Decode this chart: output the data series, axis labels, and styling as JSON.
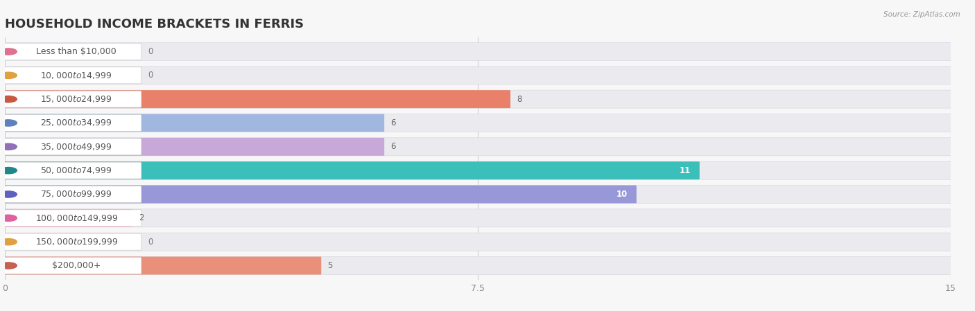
{
  "title": "HOUSEHOLD INCOME BRACKETS IN FERRIS",
  "source": "Source: ZipAtlas.com",
  "categories": [
    "Less than $10,000",
    "$10,000 to $14,999",
    "$15,000 to $24,999",
    "$25,000 to $34,999",
    "$35,000 to $49,999",
    "$50,000 to $74,999",
    "$75,000 to $99,999",
    "$100,000 to $149,999",
    "$150,000 to $199,999",
    "$200,000+"
  ],
  "values": [
    0,
    0,
    8,
    6,
    6,
    11,
    10,
    2,
    0,
    5
  ],
  "bar_colors": [
    "#f2a0b5",
    "#f7c98a",
    "#e8806a",
    "#a0b8e0",
    "#c8a8d8",
    "#3abfba",
    "#9898d8",
    "#f8a0c0",
    "#f7c98a",
    "#e8907a"
  ],
  "dot_colors": [
    "#e07090",
    "#e0a040",
    "#c85840",
    "#6080c0",
    "#9070b8",
    "#208888",
    "#6060c0",
    "#e060a0",
    "#e0a040",
    "#c86050"
  ],
  "xlim": [
    0,
    15
  ],
  "xticks": [
    0,
    7.5,
    15
  ],
  "background_color": "#f7f7f7",
  "title_fontsize": 13,
  "label_fontsize": 9,
  "value_fontsize": 8.5
}
